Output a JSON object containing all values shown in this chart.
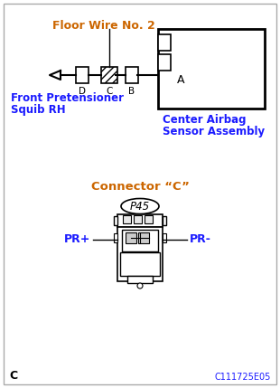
{
  "title_color": "#cc6600",
  "label_color": "#1a1aff",
  "line_color": "#000000",
  "bg_color": "#ffffff",
  "floor_wire_label": "Floor Wire No. 2",
  "center_airbag_label1": "Center Airbag",
  "center_airbag_label2": "Sensor Assembly",
  "front_pretensioner_label1": "Front Pretensioner",
  "front_pretensioner_label2": "Squib RH",
  "connector_label": "Connector “C”",
  "p45_label": "P45",
  "pr_plus_label": "PR+",
  "pr_minus_label": "PR-",
  "point_a_label": "A",
  "point_b_label": "B",
  "point_c_label": "C",
  "point_d_label": "D",
  "corner_label": "C",
  "part_number": "C111725E05"
}
